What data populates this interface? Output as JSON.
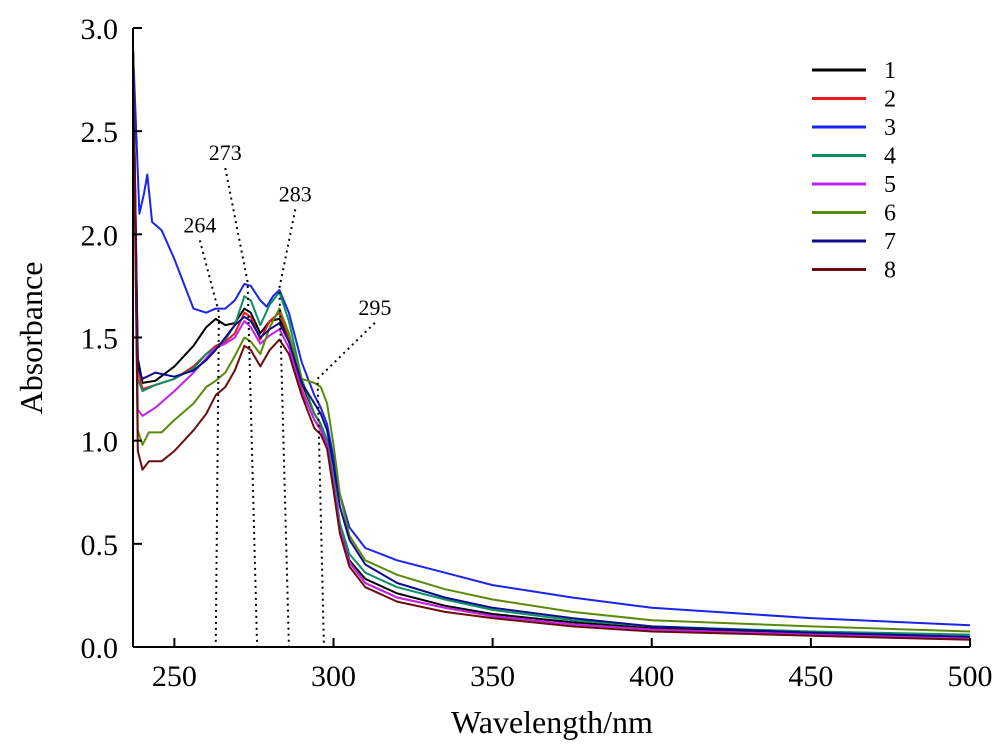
{
  "chart_data": {
    "type": "line",
    "title": "",
    "xlabel": "Wavelength/nm",
    "ylabel": "Absorbance",
    "xlim": [
      237,
      500
    ],
    "ylim": [
      0.0,
      3.0
    ],
    "x_ticks": [
      250,
      300,
      350,
      400,
      450,
      500
    ],
    "x_tick_labels": [
      "250",
      "300",
      "350",
      "400",
      "450",
      "500"
    ],
    "y_ticks": [
      0.0,
      0.5,
      1.0,
      1.5,
      2.0,
      2.5,
      3.0
    ],
    "y_tick_labels": [
      "0.0",
      "0.5",
      "1.0",
      "1.5",
      "2.0",
      "2.5",
      "3.0"
    ],
    "grid": false,
    "legend_position": "top-right",
    "series": [
      {
        "name": "1",
        "color": "#000000",
        "points": [
          [
            237,
            2.9
          ],
          [
            238.5,
            1.4
          ],
          [
            240,
            1.28
          ],
          [
            244,
            1.29
          ],
          [
            250,
            1.36
          ],
          [
            256,
            1.46
          ],
          [
            260,
            1.55
          ],
          [
            263,
            1.59
          ],
          [
            266,
            1.56
          ],
          [
            269,
            1.57
          ],
          [
            272,
            1.64
          ],
          [
            274,
            1.62
          ],
          [
            277,
            1.52
          ],
          [
            280,
            1.58
          ],
          [
            283,
            1.59
          ],
          [
            286,
            1.5
          ],
          [
            290,
            1.28
          ],
          [
            294,
            1.13
          ],
          [
            296,
            1.08
          ],
          [
            298,
            1.0
          ],
          [
            300,
            0.8
          ],
          [
            302,
            0.58
          ],
          [
            305,
            0.42
          ],
          [
            310,
            0.33
          ],
          [
            320,
            0.26
          ],
          [
            335,
            0.2
          ],
          [
            350,
            0.16
          ],
          [
            375,
            0.12
          ],
          [
            400,
            0.09
          ],
          [
            450,
            0.065
          ],
          [
            500,
            0.045
          ]
        ]
      },
      {
        "name": "2",
        "color": "#e8191d",
        "points": [
          [
            237,
            2.9
          ],
          [
            238.5,
            1.35
          ],
          [
            240,
            1.25
          ],
          [
            244,
            1.27
          ],
          [
            250,
            1.3
          ],
          [
            256,
            1.36
          ],
          [
            260,
            1.42
          ],
          [
            263,
            1.46
          ],
          [
            266,
            1.48
          ],
          [
            269,
            1.52
          ],
          [
            272,
            1.62
          ],
          [
            274,
            1.6
          ],
          [
            277,
            1.49
          ],
          [
            280,
            1.58
          ],
          [
            283,
            1.62
          ],
          [
            286,
            1.5
          ],
          [
            290,
            1.25
          ],
          [
            294,
            1.1
          ],
          [
            296,
            1.06
          ],
          [
            298,
            0.98
          ],
          [
            300,
            0.78
          ],
          [
            302,
            0.57
          ],
          [
            305,
            0.41
          ],
          [
            310,
            0.31
          ],
          [
            320,
            0.24
          ],
          [
            335,
            0.19
          ],
          [
            350,
            0.15
          ],
          [
            375,
            0.11
          ],
          [
            400,
            0.085
          ],
          [
            450,
            0.06
          ],
          [
            500,
            0.04
          ]
        ]
      },
      {
        "name": "3",
        "color": "#1a25e8",
        "points": [
          [
            237,
            2.9
          ],
          [
            239,
            2.1
          ],
          [
            240.5,
            2.2
          ],
          [
            241.5,
            2.29
          ],
          [
            243,
            2.06
          ],
          [
            246,
            2.02
          ],
          [
            250,
            1.88
          ],
          [
            254,
            1.72
          ],
          [
            256,
            1.64
          ],
          [
            260,
            1.62
          ],
          [
            263,
            1.64
          ],
          [
            266,
            1.64
          ],
          [
            269,
            1.68
          ],
          [
            272,
            1.76
          ],
          [
            274,
            1.75
          ],
          [
            277,
            1.68
          ],
          [
            279,
            1.65
          ],
          [
            281,
            1.7
          ],
          [
            283,
            1.73
          ],
          [
            286,
            1.62
          ],
          [
            290,
            1.38
          ],
          [
            294,
            1.22
          ],
          [
            296,
            1.16
          ],
          [
            298,
            1.08
          ],
          [
            300,
            0.92
          ],
          [
            302,
            0.74
          ],
          [
            305,
            0.58
          ],
          [
            310,
            0.48
          ],
          [
            320,
            0.42
          ],
          [
            335,
            0.36
          ],
          [
            350,
            0.3
          ],
          [
            375,
            0.24
          ],
          [
            400,
            0.19
          ],
          [
            450,
            0.14
          ],
          [
            500,
            0.105
          ]
        ]
      },
      {
        "name": "4",
        "color": "#0a8f63",
        "points": [
          [
            237,
            2.9
          ],
          [
            238.5,
            1.3
          ],
          [
            240,
            1.24
          ],
          [
            244,
            1.27
          ],
          [
            250,
            1.3
          ],
          [
            256,
            1.35
          ],
          [
            260,
            1.42
          ],
          [
            263,
            1.45
          ],
          [
            266,
            1.49
          ],
          [
            269,
            1.56
          ],
          [
            272,
            1.7
          ],
          [
            274,
            1.68
          ],
          [
            277,
            1.56
          ],
          [
            280,
            1.66
          ],
          [
            283,
            1.72
          ],
          [
            286,
            1.58
          ],
          [
            290,
            1.3
          ],
          [
            294,
            1.13
          ],
          [
            296,
            1.08
          ],
          [
            298,
            1.0
          ],
          [
            300,
            0.82
          ],
          [
            302,
            0.6
          ],
          [
            305,
            0.45
          ],
          [
            310,
            0.36
          ],
          [
            320,
            0.29
          ],
          [
            335,
            0.23
          ],
          [
            350,
            0.18
          ],
          [
            375,
            0.13
          ],
          [
            400,
            0.1
          ],
          [
            450,
            0.075
          ],
          [
            500,
            0.06
          ]
        ]
      },
      {
        "name": "5",
        "color": "#c020f0",
        "points": [
          [
            237,
            2.9
          ],
          [
            238.5,
            1.15
          ],
          [
            240,
            1.12
          ],
          [
            244,
            1.16
          ],
          [
            250,
            1.24
          ],
          [
            256,
            1.33
          ],
          [
            260,
            1.4
          ],
          [
            263,
            1.45
          ],
          [
            266,
            1.47
          ],
          [
            269,
            1.5
          ],
          [
            272,
            1.58
          ],
          [
            274,
            1.55
          ],
          [
            277,
            1.47
          ],
          [
            280,
            1.51
          ],
          [
            283,
            1.54
          ],
          [
            286,
            1.45
          ],
          [
            290,
            1.24
          ],
          [
            294,
            1.1
          ],
          [
            296,
            1.05
          ],
          [
            298,
            0.98
          ],
          [
            300,
            0.79
          ],
          [
            302,
            0.57
          ],
          [
            305,
            0.41
          ],
          [
            310,
            0.31
          ],
          [
            320,
            0.24
          ],
          [
            335,
            0.19
          ],
          [
            350,
            0.15
          ],
          [
            375,
            0.11
          ],
          [
            400,
            0.085
          ],
          [
            450,
            0.06
          ],
          [
            500,
            0.045
          ]
        ]
      },
      {
        "name": "6",
        "color": "#5a8a0a",
        "points": [
          [
            237,
            2.9
          ],
          [
            238.5,
            1.05
          ],
          [
            240,
            0.98
          ],
          [
            242,
            1.04
          ],
          [
            246,
            1.04
          ],
          [
            250,
            1.1
          ],
          [
            256,
            1.18
          ],
          [
            260,
            1.26
          ],
          [
            263,
            1.29
          ],
          [
            266,
            1.33
          ],
          [
            269,
            1.41
          ],
          [
            272,
            1.5
          ],
          [
            274,
            1.48
          ],
          [
            277,
            1.42
          ],
          [
            280,
            1.55
          ],
          [
            283,
            1.64
          ],
          [
            286,
            1.52
          ],
          [
            290,
            1.3
          ],
          [
            294,
            1.28
          ],
          [
            296,
            1.26
          ],
          [
            298,
            1.18
          ],
          [
            300,
            0.98
          ],
          [
            302,
            0.74
          ],
          [
            305,
            0.54
          ],
          [
            310,
            0.42
          ],
          [
            320,
            0.35
          ],
          [
            335,
            0.28
          ],
          [
            350,
            0.23
          ],
          [
            375,
            0.17
          ],
          [
            400,
            0.13
          ],
          [
            450,
            0.1
          ],
          [
            500,
            0.075
          ]
        ]
      },
      {
        "name": "7",
        "color": "#0c0c8c",
        "points": [
          [
            237,
            2.9
          ],
          [
            238.5,
            1.35
          ],
          [
            240,
            1.3
          ],
          [
            244,
            1.33
          ],
          [
            250,
            1.31
          ],
          [
            256,
            1.34
          ],
          [
            260,
            1.39
          ],
          [
            263,
            1.44
          ],
          [
            266,
            1.5
          ],
          [
            269,
            1.56
          ],
          [
            272,
            1.6
          ],
          [
            274,
            1.58
          ],
          [
            277,
            1.5
          ],
          [
            280,
            1.54
          ],
          [
            283,
            1.57
          ],
          [
            286,
            1.48
          ],
          [
            290,
            1.28
          ],
          [
            294,
            1.18
          ],
          [
            296,
            1.13
          ],
          [
            298,
            1.05
          ],
          [
            300,
            0.88
          ],
          [
            302,
            0.68
          ],
          [
            305,
            0.52
          ],
          [
            310,
            0.4
          ],
          [
            320,
            0.31
          ],
          [
            335,
            0.24
          ],
          [
            350,
            0.19
          ],
          [
            375,
            0.14
          ],
          [
            400,
            0.1
          ],
          [
            450,
            0.07
          ],
          [
            500,
            0.05
          ]
        ]
      },
      {
        "name": "8",
        "color": "#6b0d0d",
        "points": [
          [
            237,
            2.9
          ],
          [
            238.5,
            0.95
          ],
          [
            240,
            0.86
          ],
          [
            242,
            0.9
          ],
          [
            246,
            0.9
          ],
          [
            250,
            0.95
          ],
          [
            256,
            1.05
          ],
          [
            260,
            1.13
          ],
          [
            263,
            1.22
          ],
          [
            266,
            1.26
          ],
          [
            269,
            1.34
          ],
          [
            272,
            1.46
          ],
          [
            274,
            1.44
          ],
          [
            277,
            1.36
          ],
          [
            280,
            1.44
          ],
          [
            283,
            1.49
          ],
          [
            286,
            1.42
          ],
          [
            290,
            1.22
          ],
          [
            294,
            1.06
          ],
          [
            296,
            1.03
          ],
          [
            298,
            0.96
          ],
          [
            300,
            0.76
          ],
          [
            302,
            0.55
          ],
          [
            305,
            0.39
          ],
          [
            310,
            0.29
          ],
          [
            320,
            0.22
          ],
          [
            335,
            0.17
          ],
          [
            350,
            0.14
          ],
          [
            375,
            0.1
          ],
          [
            400,
            0.075
          ],
          [
            450,
            0.055
          ],
          [
            500,
            0.035
          ]
        ]
      }
    ],
    "annotations": [
      {
        "text": "264",
        "label_x": 258,
        "label_y": 2.0,
        "target_x": 264,
        "target_y": 1.62,
        "drop_to_x": 263
      },
      {
        "text": "273",
        "label_x": 266,
        "label_y": 2.35,
        "target_x": 273,
        "target_y": 1.77,
        "drop_to_x": 276
      },
      {
        "text": "283",
        "label_x": 288,
        "label_y": 2.15,
        "target_x": 283,
        "target_y": 1.74,
        "drop_to_x": 286
      },
      {
        "text": "295",
        "label_x": 313,
        "label_y": 1.6,
        "target_x": 295,
        "target_y": 1.3,
        "drop_to_x": 297
      }
    ]
  }
}
